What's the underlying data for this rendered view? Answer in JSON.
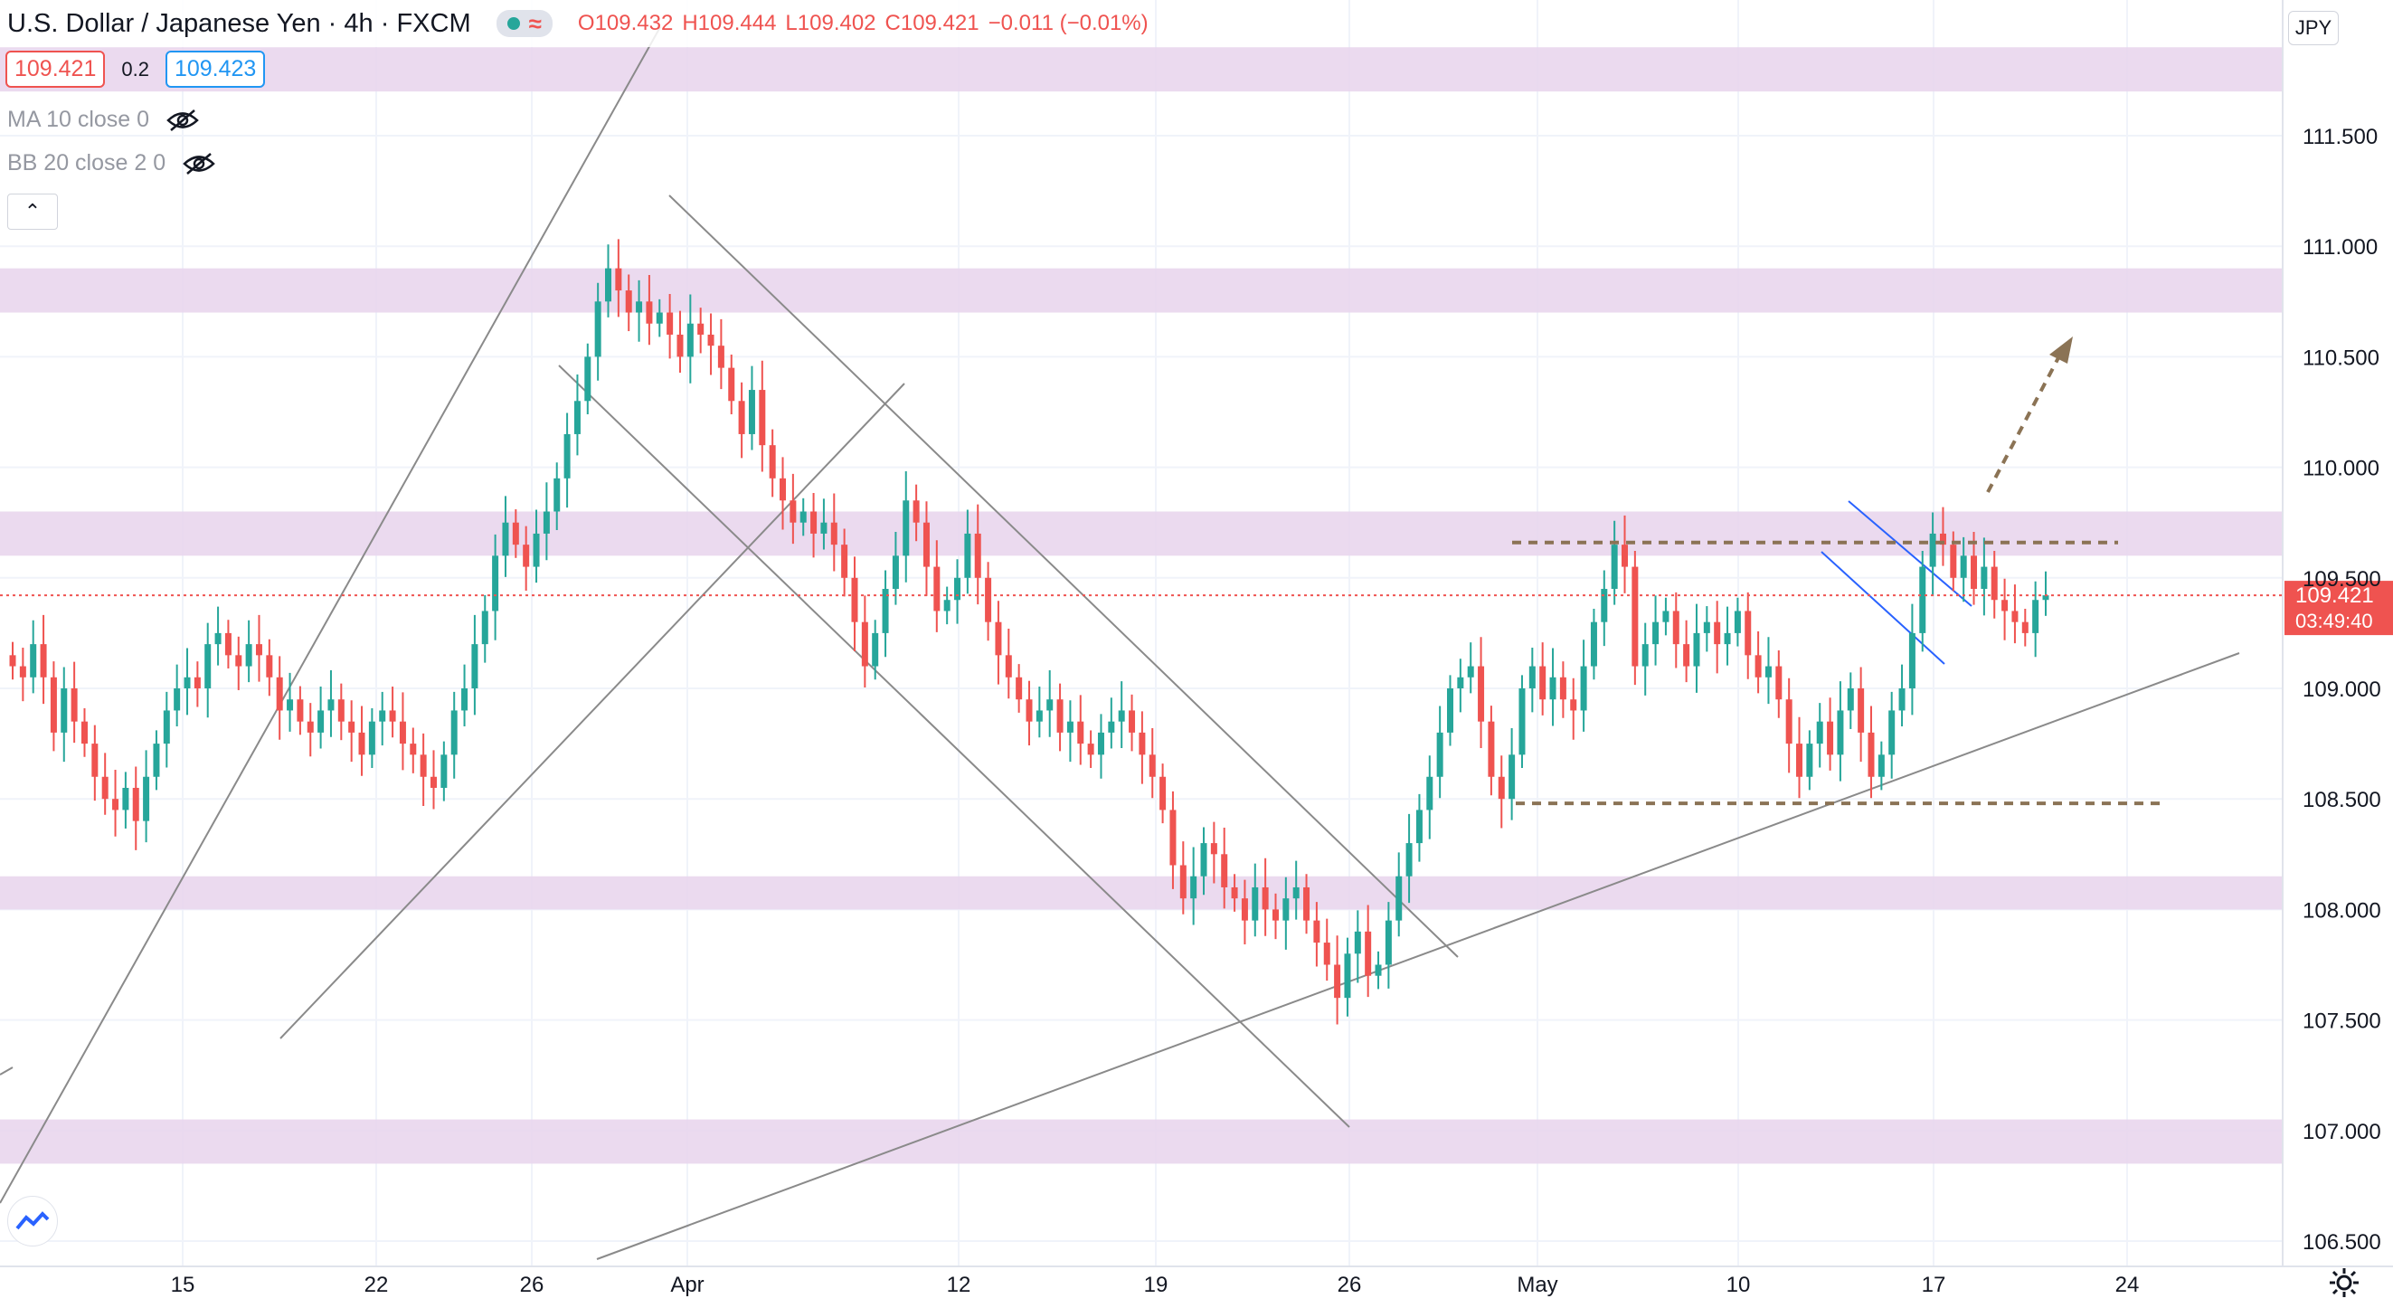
{
  "header": {
    "symbol": "U.S. Dollar / Japanese Yen",
    "interval": "4h",
    "exchange": "FXCM",
    "ohlc": {
      "open": "O109.432",
      "high": "H109.444",
      "low": "L109.402",
      "close": "C109.421",
      "change": "−0.011 (−0.01%)"
    }
  },
  "quote": {
    "bid": "109.421",
    "spread": "0.2",
    "ask": "109.423"
  },
  "indicators": [
    {
      "label": "MA 10 close 0"
    },
    {
      "label": "BB 20 close 2 0"
    }
  ],
  "currency_button": "JPY",
  "price_label": {
    "price": "109.421",
    "countdown": "03:49:40"
  },
  "colors": {
    "up": "#26a69a",
    "down": "#ef5350",
    "zone": "#e8d3ec",
    "trendline": "#8a8a8a",
    "dashed": "#8b7355",
    "channel": "#2962ff"
  },
  "chart_data": {
    "type": "candlestick",
    "instrument": "USDJPY",
    "timeframe": "4h",
    "y_ticks": [
      "106.500",
      "107.000",
      "107.500",
      "108.000",
      "108.500",
      "109.000",
      "109.500",
      "110.000",
      "110.500",
      "111.000",
      "111.500"
    ],
    "ylim": [
      106.45,
      112.0
    ],
    "x_ticks": [
      "15",
      "22",
      "26",
      "Apr",
      "12",
      "19",
      "26",
      "May",
      "10",
      "17",
      "24"
    ],
    "last_price": 109.421,
    "closes": [
      109.1,
      109.05,
      109.2,
      109.05,
      108.8,
      109.0,
      108.85,
      108.75,
      108.6,
      108.5,
      108.45,
      108.55,
      108.4,
      108.6,
      108.75,
      108.9,
      109.0,
      109.05,
      109.0,
      109.2,
      109.25,
      109.15,
      109.1,
      109.2,
      109.15,
      109.05,
      108.9,
      108.95,
      108.85,
      108.8,
      108.9,
      108.95,
      108.85,
      108.8,
      108.7,
      108.85,
      108.9,
      108.85,
      108.75,
      108.7,
      108.6,
      108.55,
      108.7,
      108.9,
      109.0,
      109.2,
      109.35,
      109.6,
      109.75,
      109.65,
      109.55,
      109.7,
      109.8,
      109.95,
      110.15,
      110.3,
      110.5,
      110.75,
      110.9,
      110.8,
      110.7,
      110.75,
      110.65,
      110.7,
      110.6,
      110.5,
      110.65,
      110.6,
      110.55,
      110.45,
      110.3,
      110.15,
      110.35,
      110.1,
      109.95,
      109.85,
      109.75,
      109.8,
      109.7,
      109.75,
      109.65,
      109.5,
      109.3,
      109.1,
      109.25,
      109.45,
      109.6,
      109.85,
      109.75,
      109.55,
      109.35,
      109.4,
      109.5,
      109.7,
      109.5,
      109.3,
      109.15,
      109.05,
      108.95,
      108.85,
      108.9,
      108.95,
      108.8,
      108.85,
      108.75,
      108.7,
      108.8,
      108.85,
      108.9,
      108.8,
      108.7,
      108.6,
      108.45,
      108.2,
      108.05,
      108.15,
      108.3,
      108.25,
      108.1,
      108.05,
      107.95,
      108.1,
      108.0,
      107.95,
      108.05,
      108.1,
      107.95,
      107.85,
      107.75,
      107.6,
      107.8,
      107.9,
      107.7,
      107.75,
      107.95,
      108.15,
      108.3,
      108.45,
      108.6,
      108.8,
      109.0,
      109.05,
      109.1,
      108.85,
      108.6,
      108.5,
      108.7,
      109.0,
      109.1,
      108.95,
      109.05,
      108.95,
      108.9,
      109.1,
      109.3,
      109.45,
      109.65,
      109.55,
      109.1,
      109.2,
      109.3,
      109.35,
      109.2,
      109.1,
      109.25,
      109.3,
      109.2,
      109.25,
      109.35,
      109.15,
      109.05,
      109.1,
      108.95,
      108.75,
      108.6,
      108.75,
      108.85,
      108.7,
      108.9,
      109.0,
      108.8,
      108.6,
      108.7,
      108.9,
      109.0,
      109.25,
      109.55,
      109.7,
      109.65,
      109.5,
      109.6,
      109.45,
      109.55,
      109.4,
      109.35,
      109.3,
      109.25,
      109.4,
      109.421
    ]
  }
}
